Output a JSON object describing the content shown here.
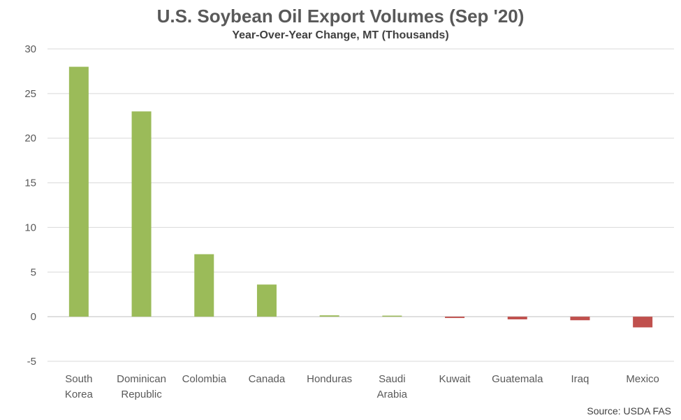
{
  "chart_data": {
    "type": "bar",
    "title": "U.S. Soybean Oil Export Volumes (Sep '20)",
    "subtitle": "Year-Over-Year Change, MT (Thousands)",
    "source": "Source: USDA FAS",
    "categories": [
      [
        "South",
        "Korea"
      ],
      [
        "Dominican",
        "Republic"
      ],
      [
        "Colombia"
      ],
      [
        "Canada"
      ],
      [
        "Honduras"
      ],
      [
        "Saudi",
        "Arabia"
      ],
      [
        "Kuwait"
      ],
      [
        "Guatemala"
      ],
      [
        "Iraq"
      ],
      [
        "Mexico"
      ]
    ],
    "values": [
      28,
      23,
      7,
      3.6,
      0.15,
      0.1,
      -0.15,
      -0.3,
      -0.4,
      -1.2
    ],
    "ylim": [
      -5,
      30
    ],
    "yticks": [
      30,
      25,
      20,
      15,
      10,
      5,
      0,
      -5
    ],
    "grid": true,
    "colors": {
      "positive": "#9BBB59",
      "negative": "#C0504D",
      "grid": "#D9D9D9",
      "text": "#595959"
    }
  }
}
